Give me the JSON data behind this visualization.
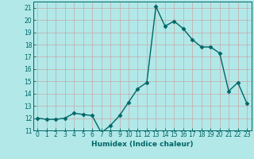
{
  "x": [
    0,
    1,
    2,
    3,
    4,
    5,
    6,
    7,
    8,
    9,
    10,
    11,
    12,
    13,
    14,
    15,
    16,
    17,
    18,
    19,
    20,
    21,
    22,
    23
  ],
  "y": [
    12.0,
    11.9,
    11.9,
    12.0,
    12.4,
    12.3,
    12.2,
    10.8,
    11.4,
    12.2,
    13.3,
    14.4,
    14.9,
    21.1,
    19.5,
    19.9,
    19.3,
    18.4,
    17.8,
    17.8,
    17.3,
    14.2,
    14.9,
    13.2
  ],
  "line_color": "#006666",
  "marker": "D",
  "marker_size": 2.5,
  "bg_color": "#b2e8e8",
  "grid_color": "#c8a8a8",
  "xlabel": "Humidex (Indice chaleur)",
  "xlim": [
    -0.5,
    23.5
  ],
  "ylim": [
    11.0,
    21.5
  ],
  "yticks": [
    11,
    12,
    13,
    14,
    15,
    16,
    17,
    18,
    19,
    20,
    21
  ],
  "xticks": [
    0,
    1,
    2,
    3,
    4,
    5,
    6,
    7,
    8,
    9,
    10,
    11,
    12,
    13,
    14,
    15,
    16,
    17,
    18,
    19,
    20,
    21,
    22,
    23
  ],
  "xlabel_fontsize": 6.5,
  "tick_fontsize": 5.5,
  "line_width": 1.0
}
